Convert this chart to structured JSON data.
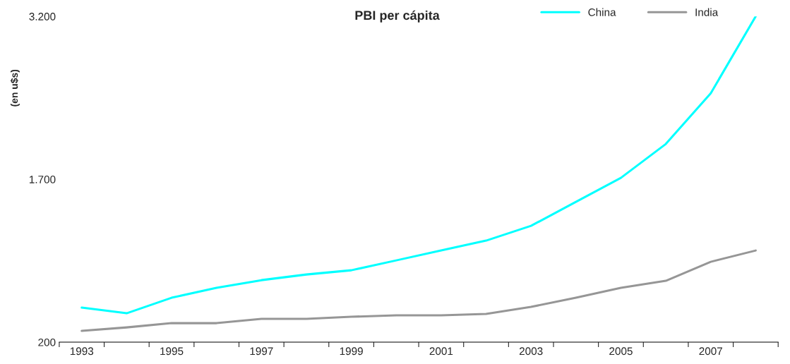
{
  "chart_data": {
    "type": "line",
    "title": "PBI per cápita",
    "ylabel": "(en u$s)",
    "categories": [
      "1993",
      null,
      "1995",
      null,
      "1997",
      null,
      "1999",
      null,
      "2001",
      null,
      "2003",
      null,
      "2005",
      null,
      "2007",
      null
    ],
    "series": [
      {
        "name": "China",
        "color": "#00ffff",
        "values": [
          518,
          466,
          609,
          700,
          771,
          823,
          862,
          953,
          1044,
          1135,
          1271,
          1492,
          1713,
          2025,
          2492,
          3200
        ]
      },
      {
        "name": "India",
        "color": "#969696",
        "values": [
          304,
          336,
          375,
          375,
          414,
          414,
          434,
          447,
          447,
          460,
          525,
          609,
          700,
          765,
          940,
          1044
        ]
      }
    ],
    "ylim": [
      200,
      3200
    ],
    "yticks": [
      {
        "value": 200,
        "label": "200"
      },
      {
        "value": 1700,
        "label": "1.700"
      },
      {
        "value": 3200,
        "label": "3.200"
      }
    ],
    "grid": false,
    "legend": "top right",
    "marker": "none",
    "line_style": "solid"
  }
}
